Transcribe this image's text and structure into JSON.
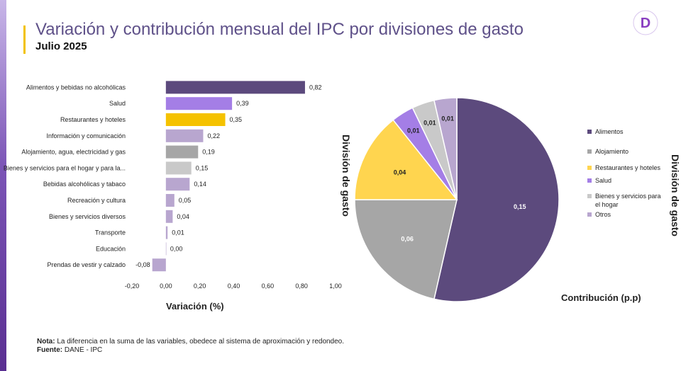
{
  "header": {
    "title": "Variación  y contribución mensual del IPC por divisiones de gasto",
    "subtitle": "Julio 2025",
    "logo_letter": "D",
    "logo_color": "#8a3fc1"
  },
  "chart_data": [
    {
      "type": "bar",
      "orientation": "horizontal",
      "categories": [
        "Alimentos y bebidas no alcohólicas",
        "Salud",
        "Restaurantes y hoteles",
        "Información y comunicación",
        "Alojamiento, agua, electricidad y gas",
        "Bienes y servicios para el hogar y para la...",
        "Bebidas alcohólicas y tabaco",
        "Recreación y cultura",
        "Bienes y servicios diversos",
        "Transporte",
        "Educación",
        "Prendas de vestir y calzado"
      ],
      "values": [
        0.82,
        0.39,
        0.35,
        0.22,
        0.19,
        0.15,
        0.14,
        0.05,
        0.04,
        0.01,
        0.0,
        -0.08
      ],
      "data_labels": [
        "0,82",
        "0,39",
        "0,35",
        "0,22",
        "0,19",
        "0,15",
        "0,14",
        "0,05",
        "0,04",
        "0,01",
        "0,00",
        "-0,08"
      ],
      "colors": [
        "#5c4a7d",
        "#a47ee6",
        "#f5c200",
        "#b8a6cf",
        "#a6a6a6",
        "#c9c9c9",
        "#b8a6cf",
        "#b8a6cf",
        "#b8a6cf",
        "#b8a6cf",
        "#b8a6cf",
        "#b8a6cf"
      ],
      "xticks": [
        -0.2,
        0,
        0.2,
        0.4,
        0.6,
        0.8,
        1.0
      ],
      "xtick_labels": [
        "-0,20",
        "0,00",
        "0,20",
        "0,40",
        "0,60",
        "0,80",
        "1,00"
      ],
      "xlim": [
        -0.2,
        1.0
      ],
      "xlabel": "Variación (%)",
      "ylabel": "División de gasto",
      "grid": false
    },
    {
      "type": "pie",
      "labels": [
        "Alimentos",
        "Alojamiento",
        "Restaurantes y hoteles",
        "Salud",
        "Bienes y servicios para el hogar",
        "Otros"
      ],
      "values": [
        0.15,
        0.06,
        0.04,
        0.01,
        0.01,
        0.01
      ],
      "data_labels": [
        "0,15",
        "0,06",
        "0,04",
        "0,01",
        "0,01",
        "0,01"
      ],
      "colors": [
        "#5c4a7d",
        "#a6a6a6",
        "#ffd54f",
        "#a47ee6",
        "#c9c9c9",
        "#b8a6cf"
      ],
      "label_colors": [
        "#ffffff",
        "#ffffff",
        "#222222",
        "#222222",
        "#222222",
        "#222222"
      ],
      "xlabel": "Contribución (p.p)",
      "ylabel": "División de gasto",
      "legend_placement": "right"
    }
  ],
  "footnote": {
    "note_label": "Nota:",
    "note_text": " La diferencia en la suma de las variables, obedece al sistema de aproximación y redondeo.",
    "source_label": "Fuente:",
    "source_text": " DANE - IPC"
  }
}
